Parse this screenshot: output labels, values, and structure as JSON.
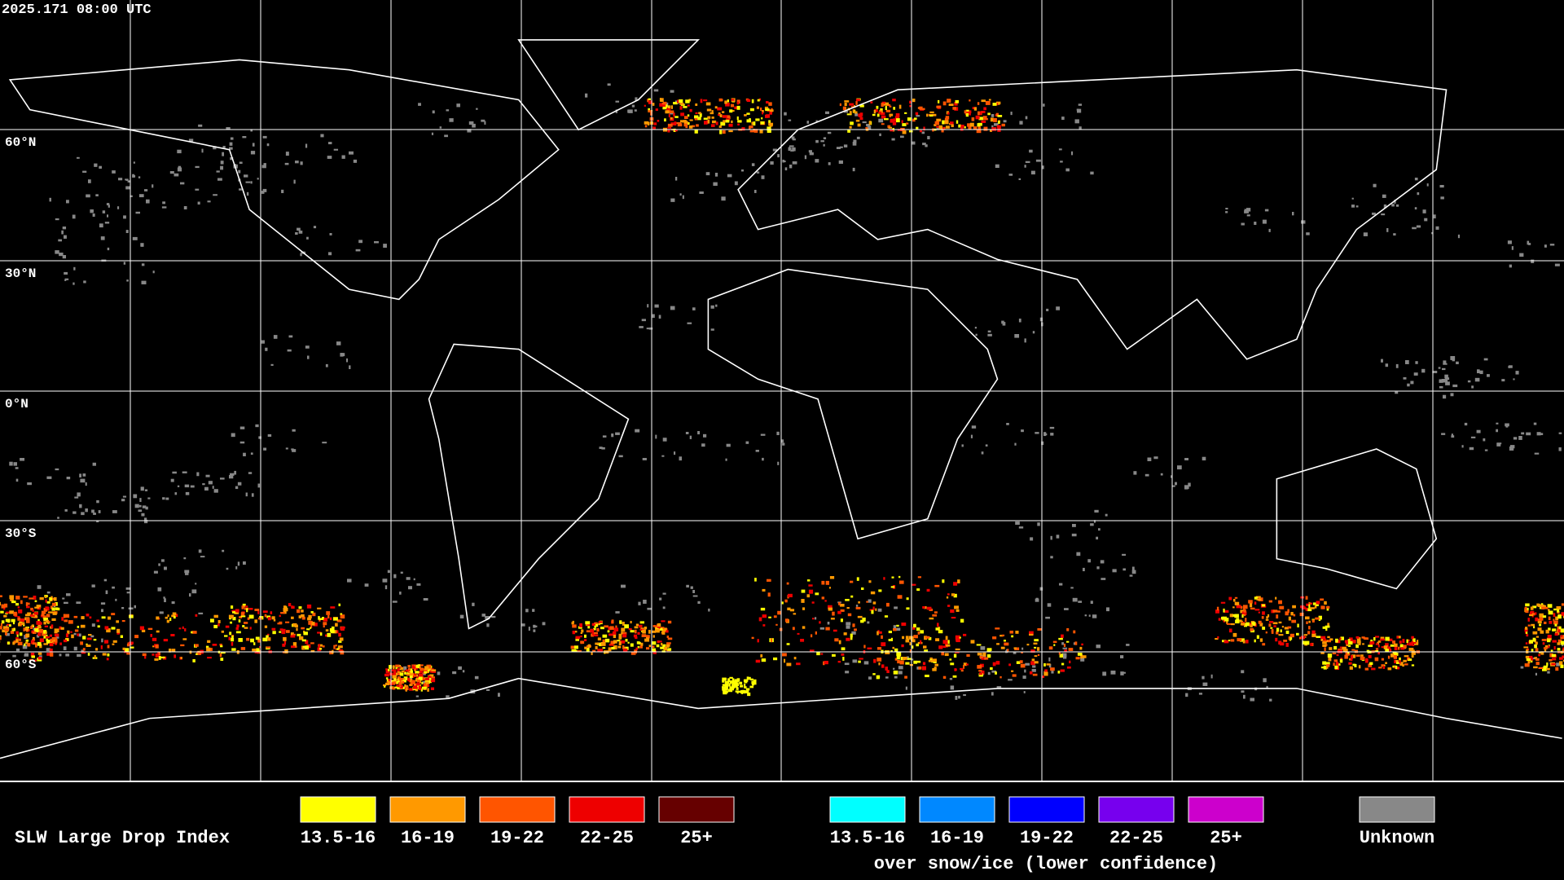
{
  "header": {
    "timestamp": "2025.171 08:00 UTC"
  },
  "map": {
    "latitude_labels": [
      "60°N",
      "30°N",
      "0°N",
      "30°S",
      "60°S"
    ]
  },
  "legend": {
    "title": "SLW Large Drop Index",
    "items": [
      {
        "label": "13.5-16",
        "color": "#ffff00"
      },
      {
        "label": "16-19",
        "color": "#ff9900"
      },
      {
        "label": "19-22",
        "color": "#ff5500"
      },
      {
        "label": "22-25",
        "color": "#ee0000"
      },
      {
        "label": "25+",
        "color": "#660000"
      }
    ],
    "snow_ice_items": [
      {
        "label": "13.5-16",
        "color": "#00ffff"
      },
      {
        "label": "16-19",
        "color": "#0088ff"
      },
      {
        "label": "19-22",
        "color": "#0000ff"
      },
      {
        "label": "22-25",
        "color": "#7700ee"
      },
      {
        "label": "25+",
        "color": "#cc00cc"
      }
    ],
    "snow_ice_caption": "over snow/ice (lower confidence)",
    "unknown": {
      "label": "Unknown",
      "color": "#888888"
    }
  }
}
